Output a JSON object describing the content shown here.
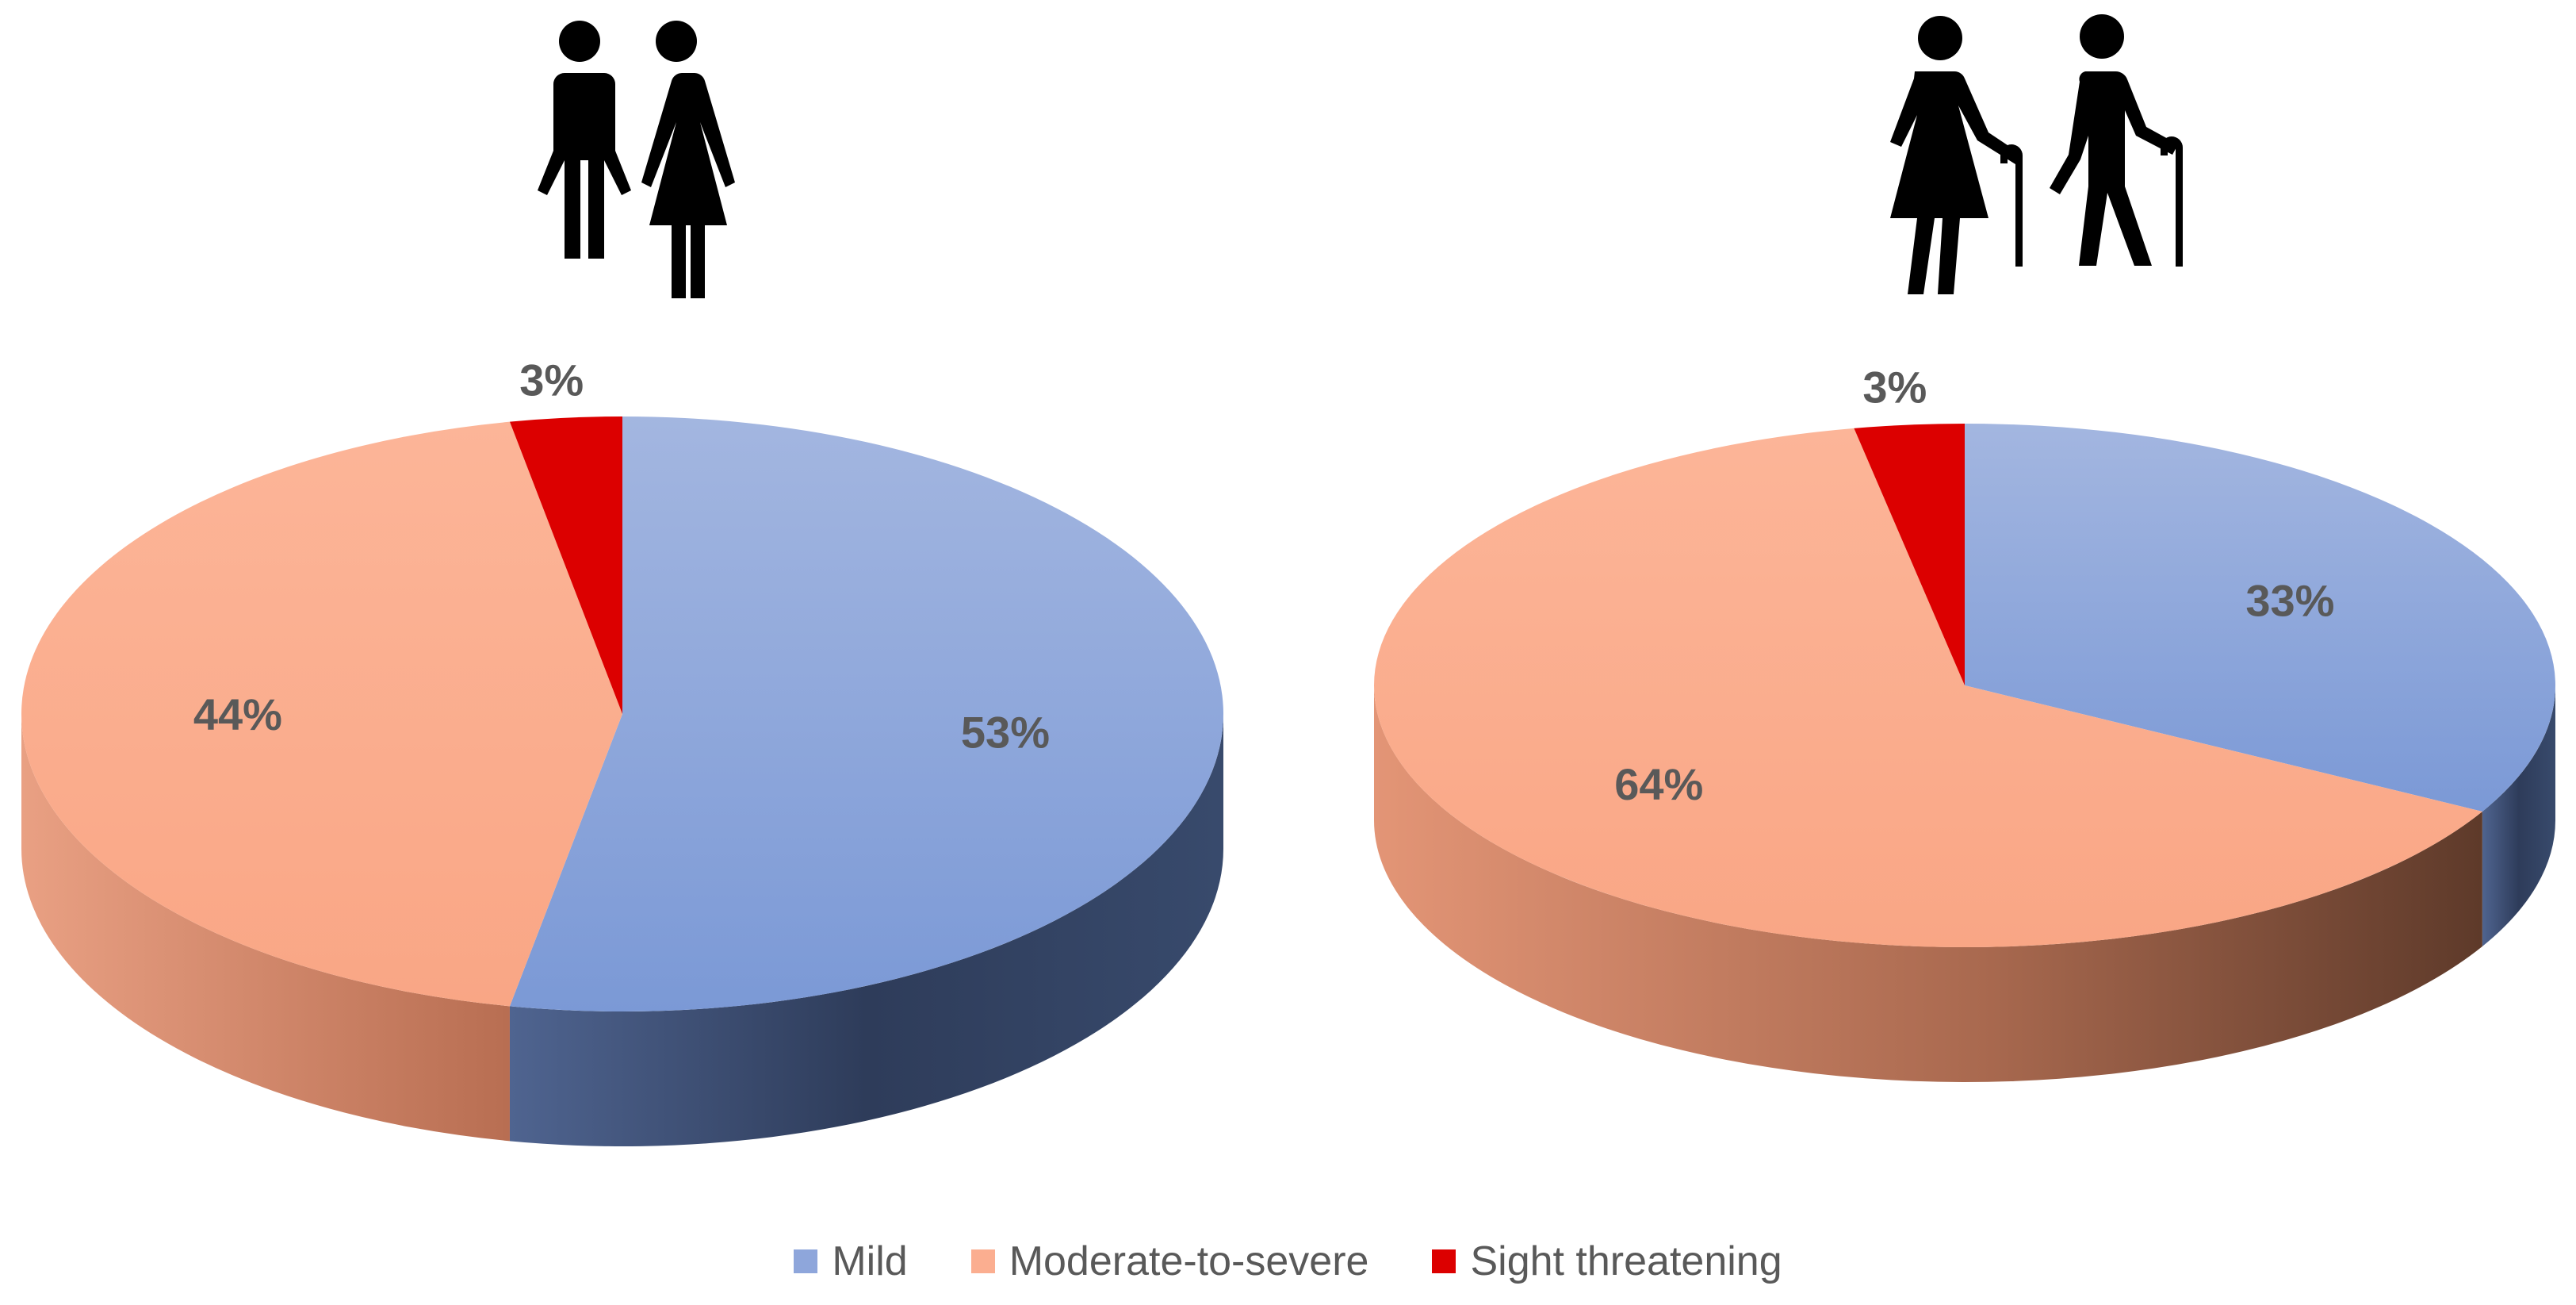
{
  "icons": {
    "left": "couple-icon",
    "right": "elderly-couple-with-canes-icon"
  },
  "colors": {
    "mild": "#8EA6DB",
    "mild_side": "#34435F",
    "moderate": "#FBAE90",
    "moderate_side": "#C87A5E",
    "sight": "#DC0000",
    "label": "#595959"
  },
  "legend": {
    "items": [
      {
        "label": "Mild",
        "color": "#8EA6DB"
      },
      {
        "label": "Moderate-to-severe",
        "color": "#FBAE90"
      },
      {
        "label": "Sight threatening",
        "color": "#DC0000"
      }
    ]
  },
  "chart_data": [
    {
      "type": "pie",
      "style": "3d",
      "categories": [
        "Mild",
        "Moderate-to-severe",
        "Sight threatening"
      ],
      "values": [
        53,
        44,
        3
      ],
      "data_labels": [
        "53%",
        "44%",
        "3%"
      ]
    },
    {
      "type": "pie",
      "style": "3d",
      "categories": [
        "Mild",
        "Moderate-to-severe",
        "Sight threatening"
      ],
      "values": [
        33,
        64,
        3
      ],
      "data_labels": [
        "33%",
        "64%",
        "3%"
      ]
    }
  ]
}
